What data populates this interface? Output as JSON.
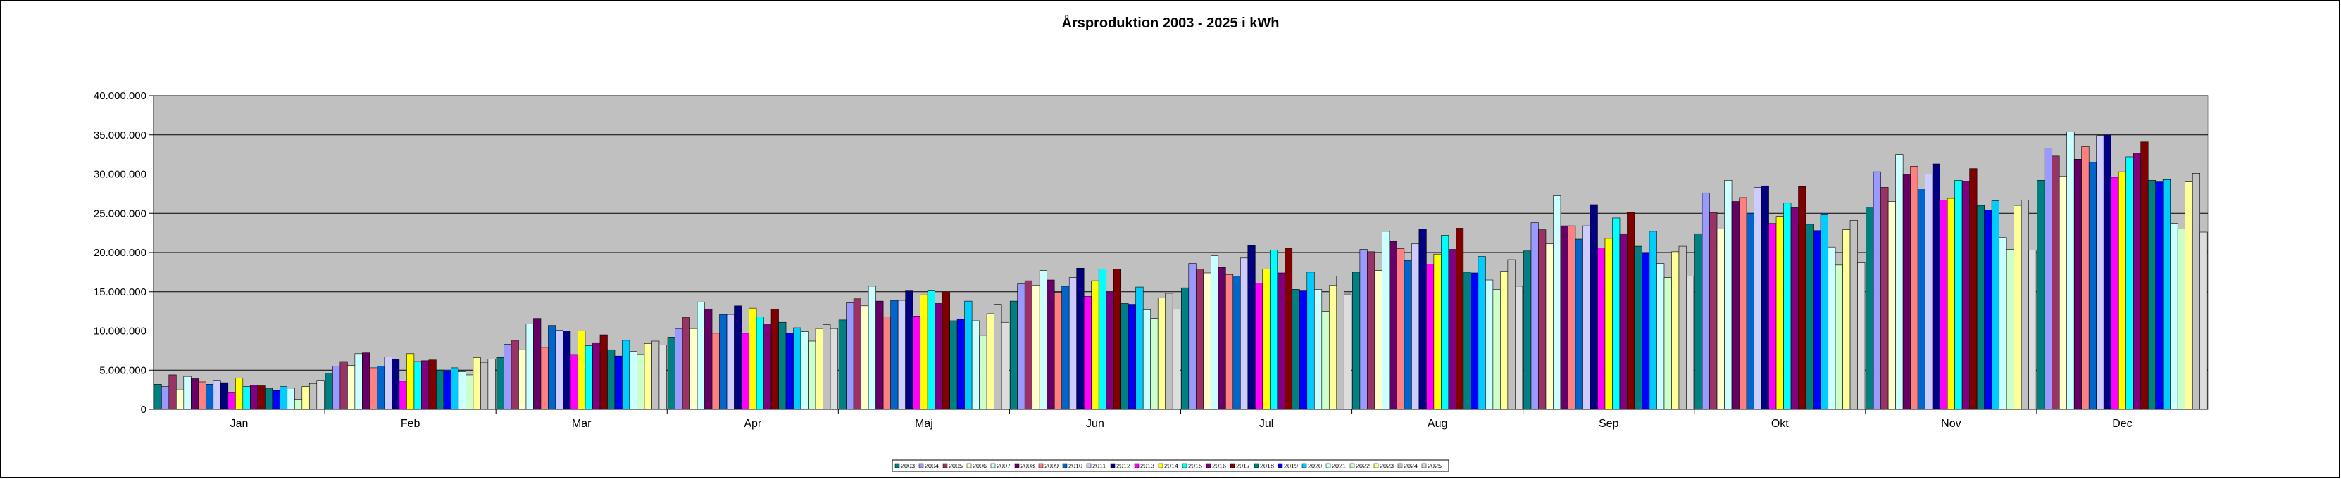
{
  "chart_data": {
    "type": "bar",
    "title": "Årsproduktion 2003 - 2025 i kWh",
    "xlabel": "",
    "ylabel": "",
    "ylim": [
      0,
      40000000
    ],
    "yticks": [
      0,
      5000000,
      10000000,
      15000000,
      20000000,
      25000000,
      30000000,
      35000000,
      40000000
    ],
    "ytick_labels": [
      "0",
      "5.000.000",
      "10.000.000",
      "15.000.000",
      "20.000.000",
      "25.000.000",
      "30.000.000",
      "35.000.000",
      "40.000.000"
    ],
    "grid": true,
    "legend_position": "bottom",
    "categories": [
      "Jan",
      "Feb",
      "Mar",
      "Apr",
      "Maj",
      "Jun",
      "Jul",
      "Aug",
      "Sep",
      "Okt",
      "Nov",
      "Dec"
    ],
    "series": [
      {
        "name": "2003",
        "color": "#008080",
        "values": [
          3200000,
          4600000,
          6600000,
          9200000,
          11400000,
          13800000,
          15500000,
          17500000,
          20200000,
          22400000,
          25800000,
          29200000
        ]
      },
      {
        "name": "2004",
        "color": "#9999ff",
        "values": [
          2900000,
          5500000,
          8300000,
          10300000,
          13600000,
          16000000,
          18600000,
          20400000,
          23800000,
          27600000,
          30300000,
          33300000
        ]
      },
      {
        "name": "2005",
        "color": "#993366",
        "values": [
          4400000,
          6100000,
          8800000,
          11700000,
          14100000,
          16400000,
          17900000,
          20100000,
          22900000,
          25100000,
          28300000,
          32300000
        ]
      },
      {
        "name": "2006",
        "color": "#ffffcc",
        "values": [
          2500000,
          5600000,
          7600000,
          10300000,
          13200000,
          15800000,
          17400000,
          17700000,
          21100000,
          23000000,
          26500000,
          29700000
        ]
      },
      {
        "name": "2007",
        "color": "#ccffff",
        "values": [
          4200000,
          7100000,
          10900000,
          13700000,
          15700000,
          17700000,
          19600000,
          22700000,
          27300000,
          29200000,
          32500000,
          35400000
        ]
      },
      {
        "name": "2008",
        "color": "#660066",
        "values": [
          3900000,
          7200000,
          11600000,
          12800000,
          13800000,
          16500000,
          18100000,
          21400000,
          23400000,
          26500000,
          30000000,
          31900000
        ]
      },
      {
        "name": "2009",
        "color": "#ff8080",
        "values": [
          3500000,
          5300000,
          7900000,
          9700000,
          11800000,
          14900000,
          17200000,
          20500000,
          23400000,
          27000000,
          31000000,
          33500000
        ]
      },
      {
        "name": "2010",
        "color": "#0066cc",
        "values": [
          3200000,
          5500000,
          10700000,
          12100000,
          13900000,
          15700000,
          17000000,
          19000000,
          21700000,
          25000000,
          28100000,
          31500000
        ]
      },
      {
        "name": "2011",
        "color": "#ccccff",
        "values": [
          3700000,
          6700000,
          10100000,
          12100000,
          13900000,
          16800000,
          19300000,
          21100000,
          23400000,
          28300000,
          30000000,
          34900000
        ]
      },
      {
        "name": "2012",
        "color": "#000080",
        "values": [
          3400000,
          6400000,
          10000000,
          13200000,
          15100000,
          18000000,
          20900000,
          23000000,
          26100000,
          28500000,
          31300000,
          35000000
        ]
      },
      {
        "name": "2013",
        "color": "#ff00ff",
        "values": [
          2100000,
          3600000,
          7000000,
          9700000,
          11900000,
          14400000,
          16100000,
          18500000,
          20600000,
          23700000,
          26700000,
          29600000
        ]
      },
      {
        "name": "2014",
        "color": "#ffff00",
        "values": [
          4000000,
          7100000,
          10000000,
          12900000,
          14600000,
          16400000,
          17900000,
          19800000,
          21800000,
          24600000,
          26900000,
          30300000
        ]
      },
      {
        "name": "2015",
        "color": "#00ffff",
        "values": [
          2900000,
          6100000,
          8100000,
          11800000,
          15100000,
          17900000,
          20300000,
          22200000,
          24400000,
          26300000,
          29200000,
          32200000
        ]
      },
      {
        "name": "2016",
        "color": "#800080",
        "values": [
          3100000,
          6200000,
          8500000,
          10900000,
          13500000,
          15000000,
          17400000,
          20400000,
          22400000,
          25700000,
          29100000,
          32700000
        ]
      },
      {
        "name": "2017",
        "color": "#800000",
        "values": [
          3000000,
          6300000,
          9500000,
          12800000,
          15000000,
          17900000,
          20500000,
          23100000,
          25100000,
          28400000,
          30700000,
          34100000
        ]
      },
      {
        "name": "2018",
        "color": "#008080",
        "values": [
          2700000,
          5000000,
          7600000,
          11100000,
          11300000,
          13500000,
          15300000,
          17500000,
          20800000,
          23600000,
          26000000,
          29200000
        ]
      },
      {
        "name": "2019",
        "color": "#0000ff",
        "values": [
          2400000,
          4900000,
          6800000,
          9700000,
          11500000,
          13400000,
          15100000,
          17400000,
          20000000,
          22800000,
          25400000,
          29000000
        ]
      },
      {
        "name": "2020",
        "color": "#00ccff",
        "values": [
          2900000,
          5300000,
          8800000,
          10400000,
          13800000,
          15600000,
          17500000,
          19500000,
          22700000,
          24900000,
          26600000,
          29300000
        ]
      },
      {
        "name": "2021",
        "color": "#ccffff",
        "values": [
          2700000,
          4800000,
          7400000,
          9900000,
          11300000,
          12700000,
          15300000,
          16500000,
          18600000,
          20700000,
          21900000,
          23700000
        ]
      },
      {
        "name": "2022",
        "color": "#ccffcc",
        "values": [
          1300000,
          4400000,
          7000000,
          8700000,
          9400000,
          11600000,
          12500000,
          15300000,
          16800000,
          18400000,
          20400000,
          23000000
        ]
      },
      {
        "name": "2023",
        "color": "#ffff99",
        "values": [
          2900000,
          6600000,
          8400000,
          10300000,
          12200000,
          14200000,
          15800000,
          17600000,
          20100000,
          22900000,
          26000000,
          29000000
        ]
      },
      {
        "name": "2024",
        "color": "#c0c0c0",
        "values": [
          3300000,
          6000000,
          8700000,
          10800000,
          13400000,
          14800000,
          17000000,
          19100000,
          20800000,
          24100000,
          26700000,
          30100000
        ]
      },
      {
        "name": "2025",
        "color": "#dddddd",
        "values": [
          3700000,
          6400000,
          8200000,
          10300000,
          11100000,
          12800000,
          14700000,
          15700000,
          17000000,
          18700000,
          20300000,
          22600000
        ]
      }
    ]
  }
}
